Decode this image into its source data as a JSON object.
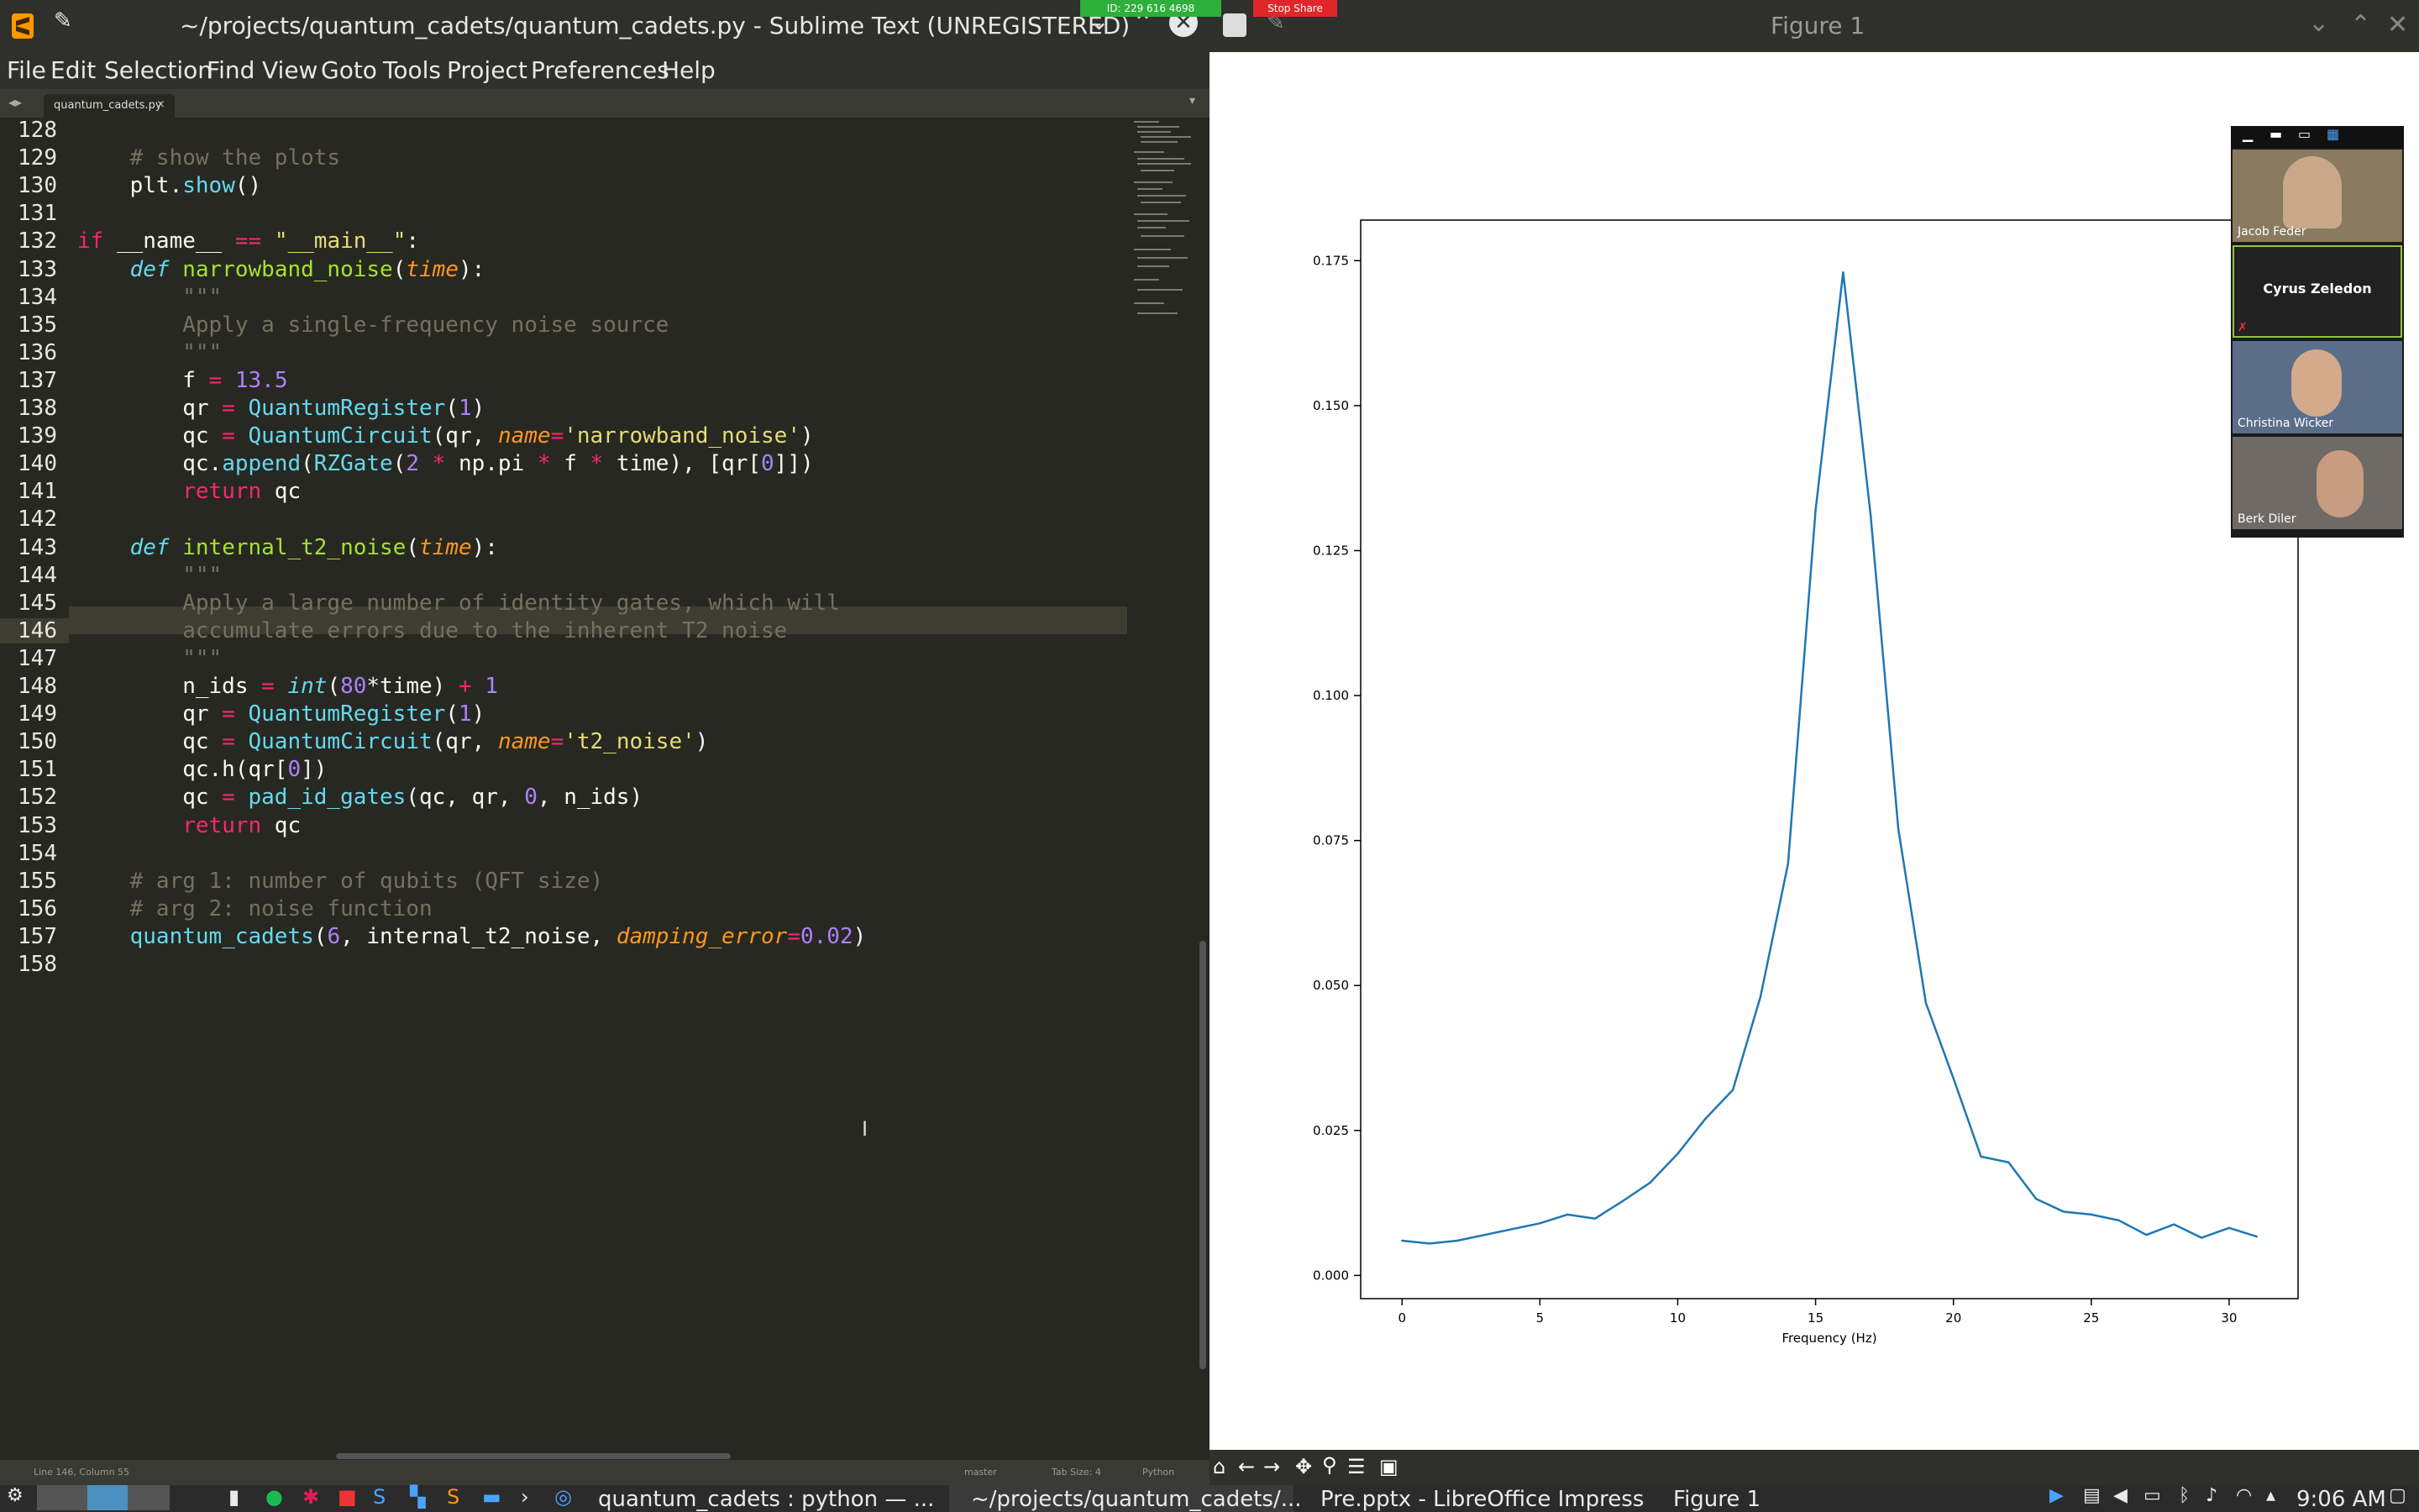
{
  "share_bar": {
    "meeting_id": "ID: 229 616 4698",
    "stop_share": "Stop Share"
  },
  "sublime": {
    "title": "~/projects/quantum_cadets/quantum_cadets.py - Sublime Text (UNREGISTERED)",
    "menu": [
      "File",
      "Edit",
      "Selection",
      "Find",
      "View",
      "Goto",
      "Tools",
      "Project",
      "Preferences",
      "Help"
    ],
    "tab_label": "quantum_cadets.py",
    "line_numbers": [
      "128",
      "129",
      "130",
      "131",
      "132",
      "133",
      "134",
      "135",
      "136",
      "137",
      "138",
      "139",
      "140",
      "141",
      "142",
      "143",
      "144",
      "145",
      "146",
      "147",
      "148",
      "149",
      "150",
      "151",
      "152",
      "153",
      "154",
      "155",
      "156",
      "157",
      "158"
    ],
    "current_line": "146",
    "code_lines": [
      "",
      "    # show the plots",
      "    plt.show()",
      "",
      "if __name__ == \"__main__\":",
      "    def narrowband_noise(time):",
      "        \"\"\"",
      "        Apply a single-frequency noise source",
      "        \"\"\"",
      "        f = 13.5",
      "        qr = QuantumRegister(1)",
      "        qc = QuantumCircuit(qr, name='narrowband_noise')",
      "        qc.append(RZGate(2 * np.pi * f * time), [qr[0]])",
      "        return qc",
      "",
      "    def internal_t2_noise(time):",
      "        \"\"\"",
      "        Apply a large number of identity gates, which will",
      "        accumulate errors due to the inherent T2 noise",
      "        \"\"\"",
      "        n_ids = int(80*time) + 1",
      "        qr = QuantumRegister(1)",
      "        qc = QuantumCircuit(qr, name='t2_noise')",
      "        qc.h(qr[0])",
      "        qc = pad_id_gates(qc, qr, 0, n_ids)",
      "        return qc",
      "",
      "    # arg 1: number of qubits (QFT size)",
      "    # arg 2: noise function",
      "    quantum_cadets(6, internal_t2_noise, damping_error=0.02)",
      ""
    ],
    "status": {
      "position": "Line 146, Column 55",
      "branch": "master",
      "tab_size": "Tab Size: 4",
      "syntax": "Python"
    }
  },
  "figure": {
    "title": "Figure 1",
    "toolbar_icons": [
      "home-icon",
      "back-icon",
      "forward-icon",
      "pan-icon",
      "zoom-icon",
      "configure-icon",
      "save-icon"
    ]
  },
  "chart_data": {
    "type": "line",
    "xlabel": "Frequency (Hz)",
    "ylabel": "",
    "xlim": [
      -1.5,
      32.5
    ],
    "ylim": [
      -0.004,
      0.182
    ],
    "xticks": [
      "0",
      "5",
      "10",
      "15",
      "20",
      "25",
      "30"
    ],
    "yticks": [
      "0.000",
      "0.025",
      "0.050",
      "0.075",
      "0.100",
      "0.125",
      "0.150",
      "0.175"
    ],
    "color": "#1f77b4",
    "x": [
      0,
      1,
      2,
      3,
      4,
      5,
      6,
      7,
      8,
      9,
      10,
      11,
      12,
      13,
      14,
      15,
      16,
      17,
      18,
      19,
      20,
      21,
      22,
      23,
      24,
      25,
      26,
      27,
      28,
      29,
      30,
      31
    ],
    "y": [
      0.006,
      0.0055,
      0.006,
      0.007,
      0.008,
      0.009,
      0.0105,
      0.0098,
      0.0128,
      0.016,
      0.021,
      0.027,
      0.032,
      0.048,
      0.071,
      0.132,
      0.173,
      0.131,
      0.077,
      0.047,
      0.034,
      0.0205,
      0.0195,
      0.0132,
      0.011,
      0.0105,
      0.0095,
      0.007,
      0.0088,
      0.0065,
      0.0082,
      0.0067
    ]
  },
  "zoom": {
    "participants": [
      "Jacob Feder",
      "Cyrus Zeledon",
      "Christina Wicker",
      "Berk Diler"
    ]
  },
  "taskbar": {
    "items": [
      "quantum_cadets : python — ...",
      "~/projects/quantum_cadets/...",
      "Pre.pptx - LibreOffice Impress",
      "Figure 1"
    ],
    "time": "9:06 AM"
  }
}
